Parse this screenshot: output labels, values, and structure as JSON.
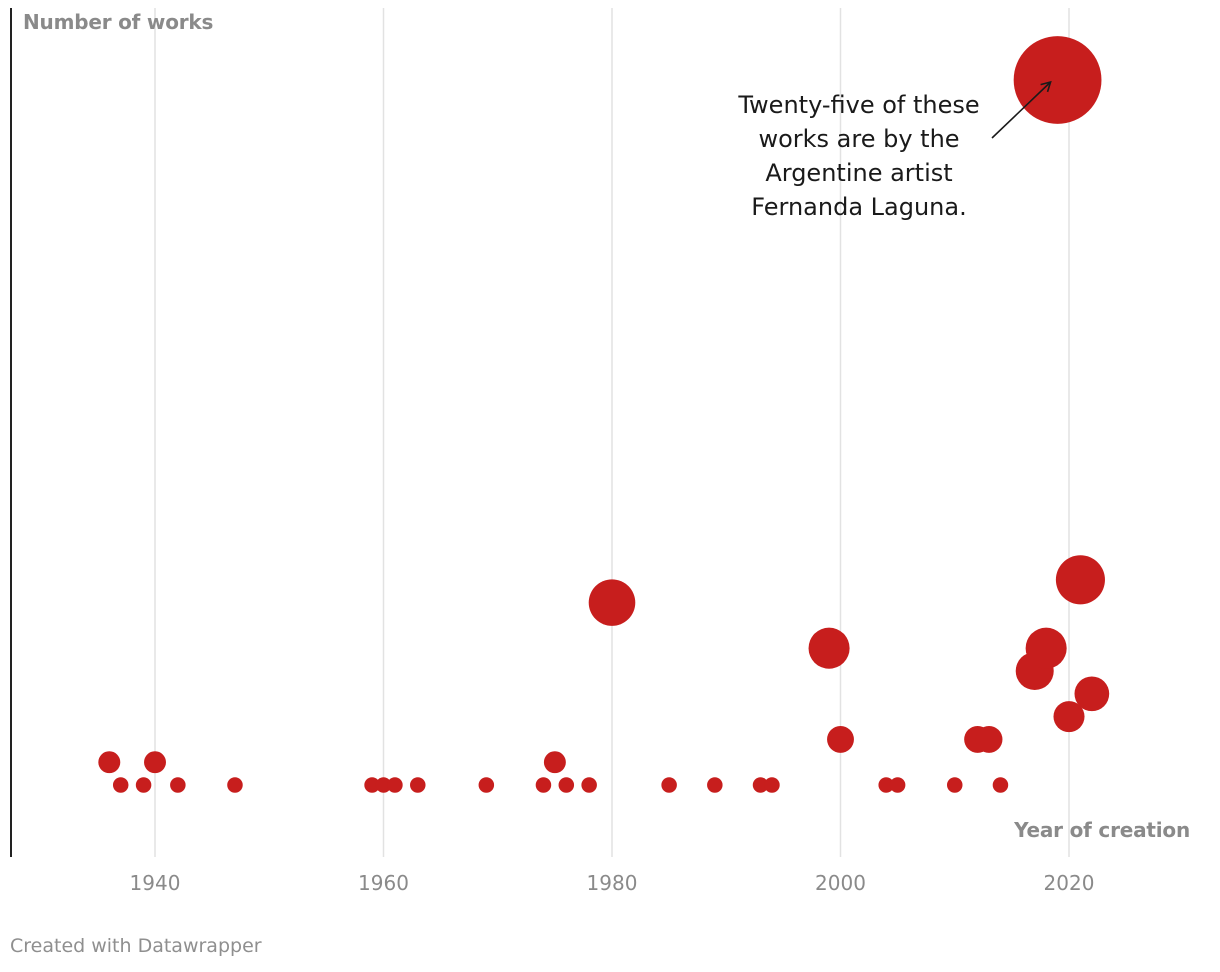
{
  "chart_data": {
    "type": "scatter",
    "title": "",
    "xlabel": "Year of creation",
    "ylabel": "Number of works",
    "xlim": [
      1928,
      2033
    ],
    "x_ticks": [
      1940,
      1960,
      1980,
      2000,
      2020
    ],
    "x_tick_labels": [
      "1940",
      "1960",
      "1980",
      "2000",
      "2020"
    ],
    "grid": "vertical",
    "size_encodes": "number of works",
    "marker_color": "#c71e1d",
    "points": [
      {
        "x": 1936,
        "y": 2
      },
      {
        "x": 1937,
        "y": 1
      },
      {
        "x": 1939,
        "y": 1
      },
      {
        "x": 1940,
        "y": 2
      },
      {
        "x": 1942,
        "y": 1
      },
      {
        "x": 1947,
        "y": 1
      },
      {
        "x": 1959,
        "y": 1
      },
      {
        "x": 1960,
        "y": 1
      },
      {
        "x": 1961,
        "y": 1
      },
      {
        "x": 1963,
        "y": 1
      },
      {
        "x": 1969,
        "y": 1
      },
      {
        "x": 1974,
        "y": 1
      },
      {
        "x": 1975,
        "y": 2
      },
      {
        "x": 1976,
        "y": 1
      },
      {
        "x": 1978,
        "y": 1
      },
      {
        "x": 1980,
        "y": 9
      },
      {
        "x": 1985,
        "y": 1
      },
      {
        "x": 1989,
        "y": 1
      },
      {
        "x": 1993,
        "y": 1
      },
      {
        "x": 1994,
        "y": 1
      },
      {
        "x": 1999,
        "y": 7
      },
      {
        "x": 2000,
        "y": 3
      },
      {
        "x": 2004,
        "y": 1
      },
      {
        "x": 2005,
        "y": 1
      },
      {
        "x": 2010,
        "y": 1
      },
      {
        "x": 2012,
        "y": 3
      },
      {
        "x": 2013,
        "y": 3
      },
      {
        "x": 2014,
        "y": 1
      },
      {
        "x": 2017,
        "y": 6
      },
      {
        "x": 2018,
        "y": 7
      },
      {
        "x": 2019,
        "y": 32
      },
      {
        "x": 2020,
        "y": 4
      },
      {
        "x": 2021,
        "y": 10
      },
      {
        "x": 2022,
        "y": 5
      }
    ],
    "annotation": {
      "text": "Twenty-five of these\nworks are by the\nArgentine artist\nFernanda Laguna.",
      "points_to": {
        "x": 2019,
        "y": 32
      }
    }
  },
  "footer": {
    "credit": "Created with Datawrapper"
  }
}
